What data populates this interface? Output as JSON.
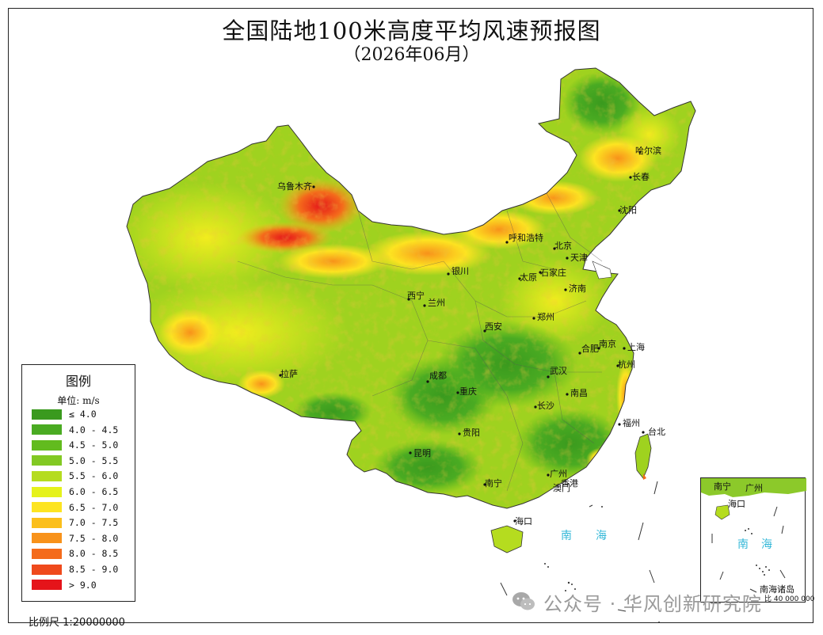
{
  "map": {
    "title": "全国陆地100米高度平均风速预报图",
    "subtitle": "（2026年06月）",
    "scale_label": "比例尺 1:20000000"
  },
  "legend": {
    "title": "图例",
    "unit": "单位: m/s",
    "items": [
      {
        "label": "≤ 4.0",
        "color": "#3a9a1e"
      },
      {
        "label": "4.0 - 4.5",
        "color": "#4aab22"
      },
      {
        "label": "4.5 - 5.0",
        "color": "#62bb1e"
      },
      {
        "label": "5.0 - 5.5",
        "color": "#82c923"
      },
      {
        "label": "5.5 - 6.0",
        "color": "#b5dc1f"
      },
      {
        "label": "6.0 - 6.5",
        "color": "#e5f21b"
      },
      {
        "label": "6.5 - 7.0",
        "color": "#fde421"
      },
      {
        "label": "7.0 - 7.5",
        "color": "#fbbf1b"
      },
      {
        "label": "7.5 - 8.0",
        "color": "#f8921a"
      },
      {
        "label": "8.0 - 8.5",
        "color": "#f46b1b"
      },
      {
        "label": "8.5 - 9.0",
        "color": "#ef4a1c"
      },
      {
        "label": "> 9.0",
        "color": "#e5141a"
      }
    ]
  },
  "cities": {
    "harbin": "哈尔滨",
    "changchun": "长春",
    "shenyang": "沈阳",
    "urumqi": "乌鲁木齐",
    "hohhot": "呼和浩特",
    "beijing": "北京",
    "tianjin": "天津",
    "yinchuan": "银川",
    "taiyuan": "太原",
    "shijiazhuang": "石家庄",
    "xining": "西宁",
    "lanzhou": "兰州",
    "jinan": "济南",
    "zhengzhou": "郑州",
    "xian": "西安",
    "nanjing": "南京",
    "shanghai": "上海",
    "hefei": "合肥",
    "hangzhou": "杭州",
    "lhasa": "拉萨",
    "chengdu": "成都",
    "wuhan": "武汉",
    "chongqing": "重庆",
    "nanchang": "南昌",
    "changsha": "长沙",
    "fuzhou": "福州",
    "taipei": "台北",
    "guiyang": "贵阳",
    "kunming": "昆明",
    "guangzhou": "广州",
    "nanning": "南宁",
    "haikou": "海口",
    "hongkong": "香港",
    "macau": "澳门"
  },
  "sea": {
    "label_left": "南",
    "label_right": "海"
  },
  "inset": {
    "nanning": "南宁",
    "guangzhou": "广州",
    "haikou": "海口",
    "sea_left": "南",
    "sea_right": "海",
    "islands_label": "南海诸岛",
    "scale": "比 40 000 000"
  },
  "watermark": {
    "text": "公众号 · 华风创新研究院"
  },
  "colors": {
    "low": "#3a9a1e",
    "mid": "#e5f21b",
    "high": "#e5141a",
    "sea_text": "#35b8d8"
  }
}
